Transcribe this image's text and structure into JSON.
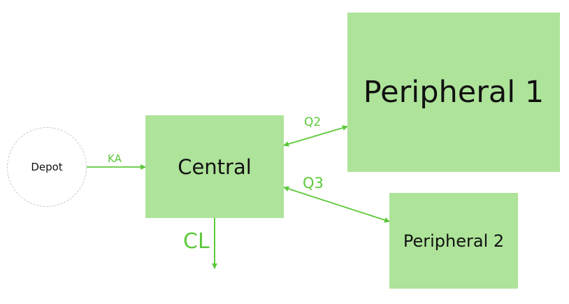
{
  "colors": {
    "node_fill": "#aee39a",
    "edge": "#5cc93b",
    "depot_border": "#c8c8c8",
    "text": "#111111"
  },
  "nodes": {
    "depot": "Depot",
    "central": "Central",
    "peripheral1": "Peripheral 1",
    "peripheral2": "Peripheral 2"
  },
  "edges": {
    "ka": "KA",
    "q2": "Q2",
    "q3": "Q3",
    "cl": "CL"
  }
}
